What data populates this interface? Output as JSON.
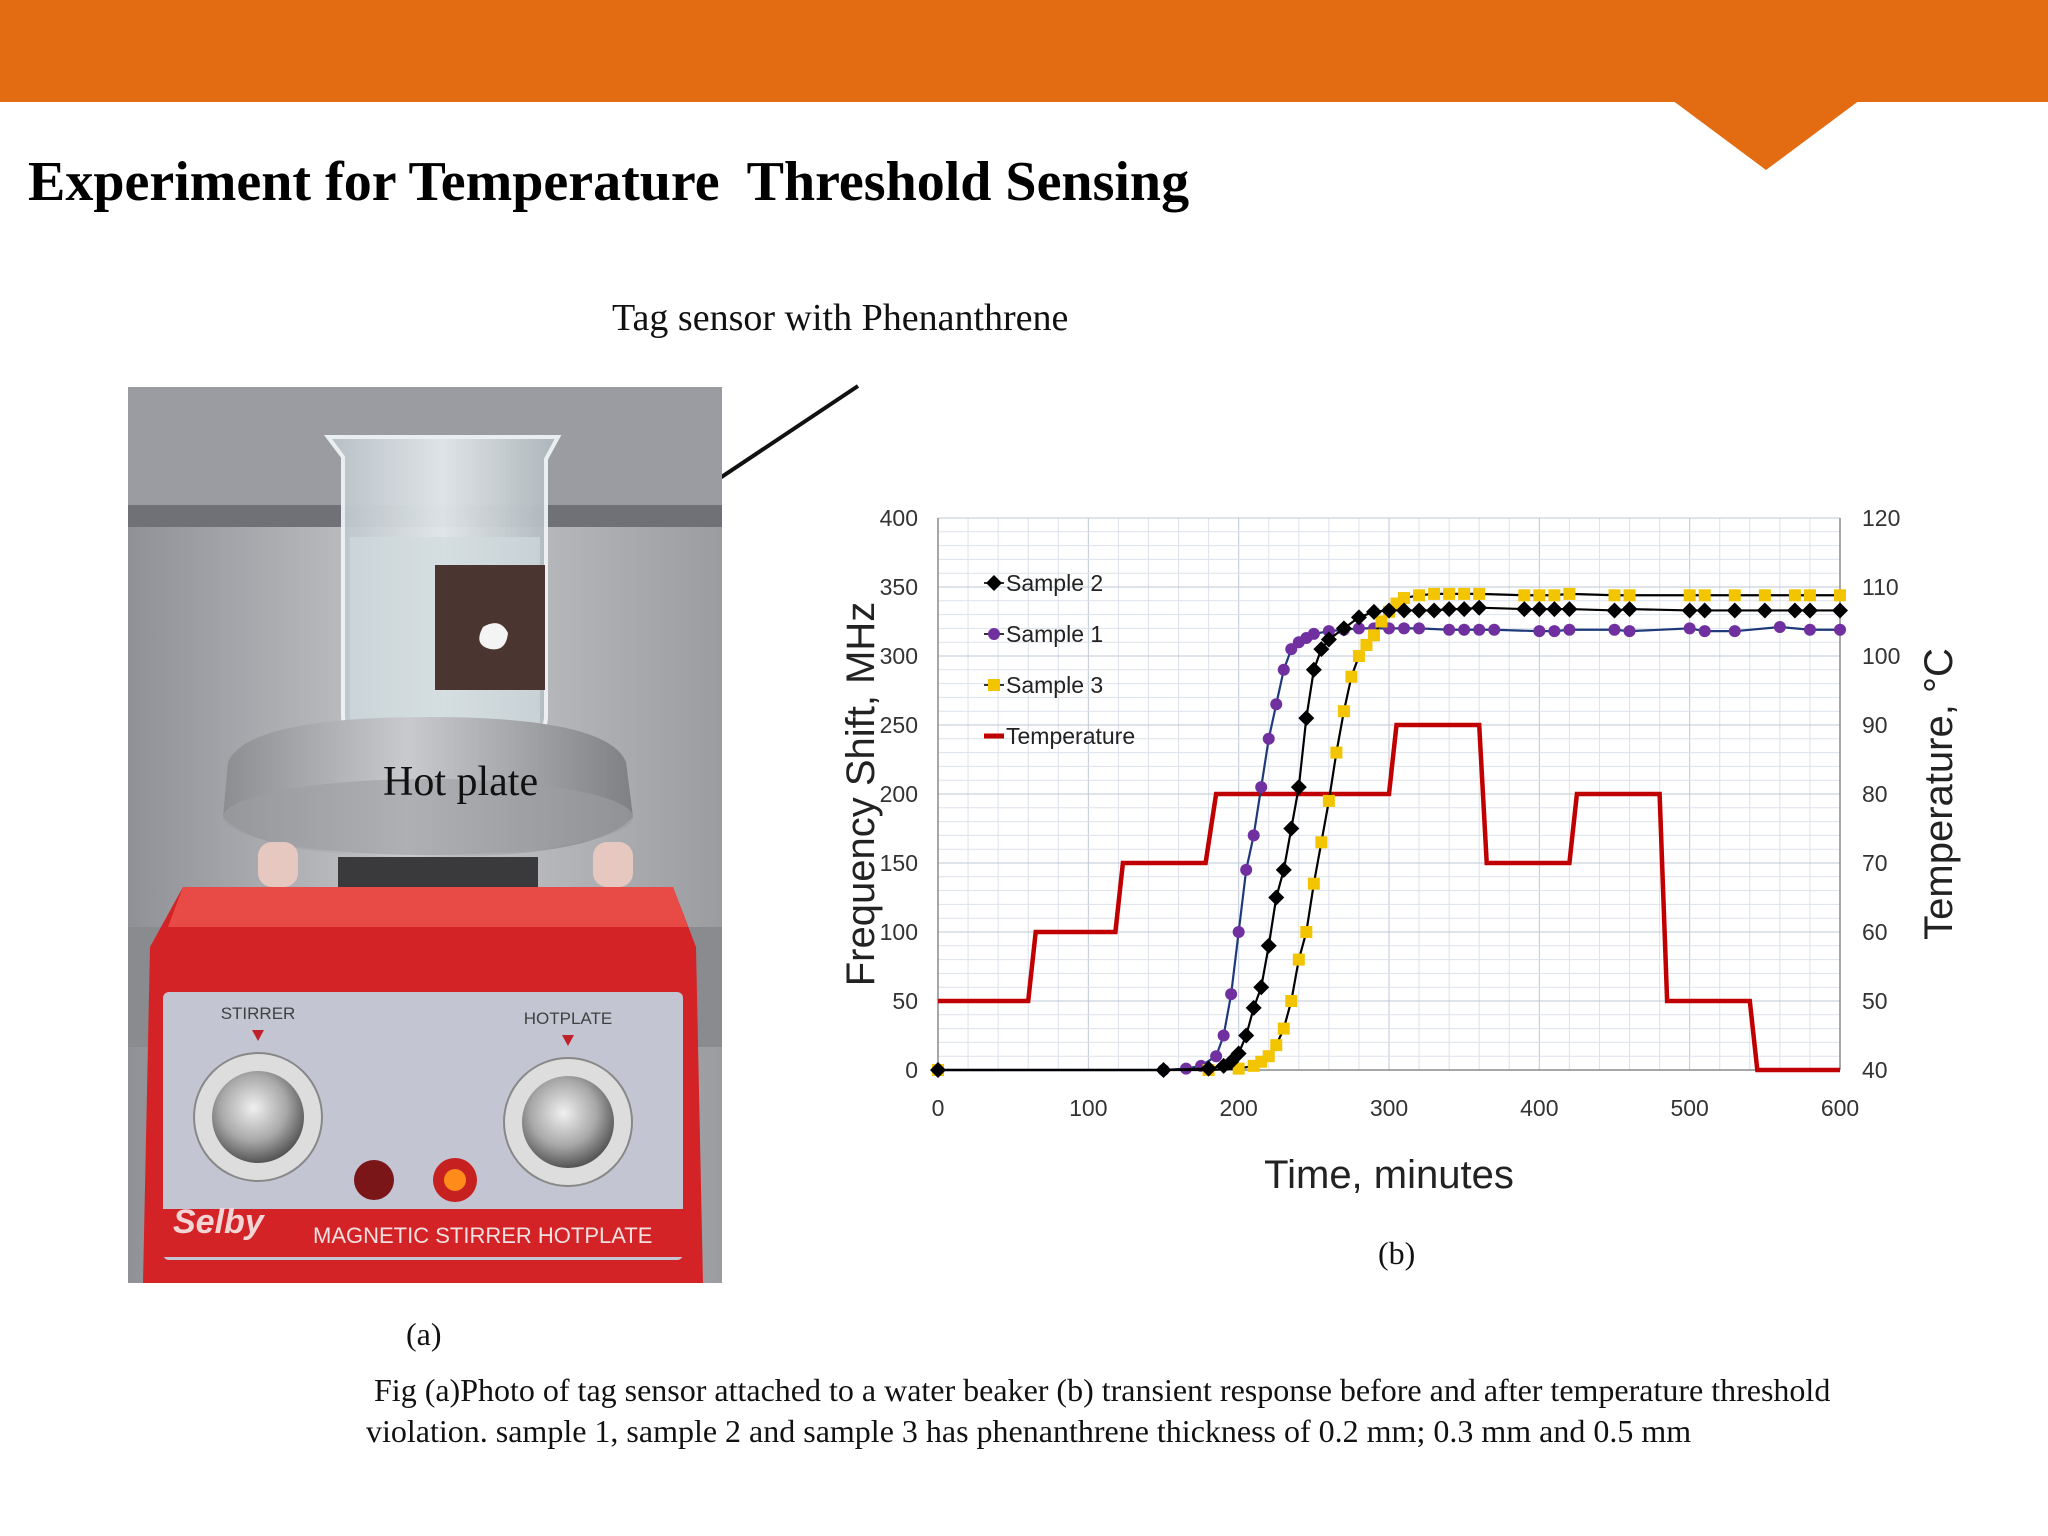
{
  "slide": {
    "title": "Experiment for Temperature  Threshold Sensing",
    "tag_label": "Tag sensor with Phenanthrene",
    "hot_plate_label": "Hot plate",
    "panel_a_label": "(a)",
    "panel_b_label": "(b)",
    "caption_line1": "Fig (a)Photo of tag sensor attached to a water beaker  (b) transient response before and after temperature threshold",
    "caption_line2": "violation. sample 1, sample 2 and sample 3 has phenanthrene thickness of 0.2 mm; 0.3 mm and 0.5 mm"
  },
  "photo": {
    "stirrer_label": "STIRRER",
    "hotplate_label": "HOTPLATE",
    "brand": "Selby",
    "device_name": "MAGNETIC STIRRER HOTPLATE"
  },
  "colors": {
    "accent_bar": "#e36c12",
    "sample1": "#7030a0",
    "sample2": "#000000",
    "sample3": "#f2c500",
    "temperature": "#c00000",
    "device_red": "#d42326"
  },
  "chart_data": {
    "type": "line",
    "xlabel": "Time, minutes",
    "ylabel": "Frequency Shift, MHz",
    "y2label": "Temperature, °C",
    "xlim": [
      0,
      600
    ],
    "ylim": [
      0,
      400
    ],
    "y2lim": [
      40,
      120
    ],
    "x_ticks": [
      "0",
      "100",
      "200",
      "300",
      "400",
      "500",
      "600"
    ],
    "y_ticks": [
      "0",
      "50",
      "100",
      "150",
      "200",
      "250",
      "300",
      "350",
      "400"
    ],
    "y2_ticks": [
      "40",
      "50",
      "60",
      "70",
      "80",
      "90",
      "100",
      "110",
      "120"
    ],
    "grid": true,
    "legend_position": "top-left",
    "series": [
      {
        "name": "Sample 2",
        "marker": "diamond",
        "points": [
          [
            0,
            0
          ],
          [
            150,
            0
          ],
          [
            180,
            1
          ],
          [
            190,
            3
          ],
          [
            195,
            6
          ],
          [
            200,
            12
          ],
          [
            205,
            25
          ],
          [
            210,
            45
          ],
          [
            215,
            60
          ],
          [
            220,
            90
          ],
          [
            225,
            125
          ],
          [
            230,
            145
          ],
          [
            235,
            175
          ],
          [
            240,
            205
          ],
          [
            245,
            255
          ],
          [
            250,
            290
          ],
          [
            255,
            305
          ],
          [
            260,
            312
          ],
          [
            270,
            320
          ],
          [
            280,
            328
          ],
          [
            290,
            332
          ],
          [
            300,
            333
          ],
          [
            310,
            333
          ],
          [
            320,
            333
          ],
          [
            330,
            333
          ],
          [
            340,
            334
          ],
          [
            350,
            334
          ],
          [
            360,
            335
          ],
          [
            390,
            334
          ],
          [
            400,
            334
          ],
          [
            410,
            334
          ],
          [
            420,
            334
          ],
          [
            450,
            333
          ],
          [
            460,
            334
          ],
          [
            500,
            333
          ],
          [
            510,
            333
          ],
          [
            530,
            333
          ],
          [
            550,
            333
          ],
          [
            570,
            333
          ],
          [
            580,
            333
          ],
          [
            600,
            333
          ]
        ]
      },
      {
        "name": "Sample 1",
        "marker": "circle",
        "points": [
          [
            0,
            0
          ],
          [
            150,
            0
          ],
          [
            165,
            1
          ],
          [
            175,
            3
          ],
          [
            185,
            10
          ],
          [
            190,
            25
          ],
          [
            195,
            55
          ],
          [
            200,
            100
          ],
          [
            205,
            145
          ],
          [
            210,
            170
          ],
          [
            215,
            205
          ],
          [
            220,
            240
          ],
          [
            225,
            265
          ],
          [
            230,
            290
          ],
          [
            235,
            305
          ],
          [
            240,
            310
          ],
          [
            245,
            313
          ],
          [
            250,
            316
          ],
          [
            260,
            318
          ],
          [
            270,
            319
          ],
          [
            280,
            320
          ],
          [
            290,
            320
          ],
          [
            300,
            320
          ],
          [
            310,
            320
          ],
          [
            320,
            320
          ],
          [
            340,
            319
          ],
          [
            350,
            319
          ],
          [
            360,
            319
          ],
          [
            370,
            319
          ],
          [
            400,
            318
          ],
          [
            410,
            318
          ],
          [
            420,
            319
          ],
          [
            450,
            319
          ],
          [
            460,
            318
          ],
          [
            500,
            320
          ],
          [
            510,
            318
          ],
          [
            530,
            318
          ],
          [
            560,
            321
          ],
          [
            580,
            319
          ],
          [
            600,
            319
          ]
        ]
      },
      {
        "name": "Sample 3",
        "marker": "square",
        "points": [
          [
            0,
            0
          ],
          [
            180,
            0
          ],
          [
            200,
            1
          ],
          [
            210,
            3
          ],
          [
            215,
            6
          ],
          [
            220,
            10
          ],
          [
            225,
            18
          ],
          [
            230,
            30
          ],
          [
            235,
            50
          ],
          [
            240,
            80
          ],
          [
            245,
            100
          ],
          [
            250,
            135
          ],
          [
            255,
            165
          ],
          [
            260,
            195
          ],
          [
            265,
            230
          ],
          [
            270,
            260
          ],
          [
            275,
            285
          ],
          [
            280,
            300
          ],
          [
            285,
            308
          ],
          [
            290,
            315
          ],
          [
            295,
            325
          ],
          [
            300,
            332
          ],
          [
            305,
            338
          ],
          [
            310,
            342
          ],
          [
            320,
            344
          ],
          [
            330,
            345
          ],
          [
            340,
            345
          ],
          [
            350,
            345
          ],
          [
            360,
            345
          ],
          [
            390,
            344
          ],
          [
            400,
            344
          ],
          [
            410,
            344
          ],
          [
            420,
            345
          ],
          [
            450,
            344
          ],
          [
            460,
            344
          ],
          [
            500,
            344
          ],
          [
            510,
            344
          ],
          [
            530,
            344
          ],
          [
            550,
            344
          ],
          [
            570,
            344
          ],
          [
            580,
            344
          ],
          [
            600,
            344
          ]
        ]
      },
      {
        "name": "Temperature",
        "axis": "right",
        "marker": "none",
        "points": [
          [
            0,
            50
          ],
          [
            60,
            50
          ],
          [
            65,
            60
          ],
          [
            118,
            60
          ],
          [
            123,
            70
          ],
          [
            178,
            70
          ],
          [
            185,
            80
          ],
          [
            300,
            80
          ],
          [
            305,
            90
          ],
          [
            360,
            90
          ],
          [
            365,
            70
          ],
          [
            420,
            70
          ],
          [
            425,
            80
          ],
          [
            480,
            80
          ],
          [
            485,
            50
          ],
          [
            540,
            50
          ],
          [
            545,
            40
          ],
          [
            600,
            40
          ]
        ]
      }
    ]
  }
}
